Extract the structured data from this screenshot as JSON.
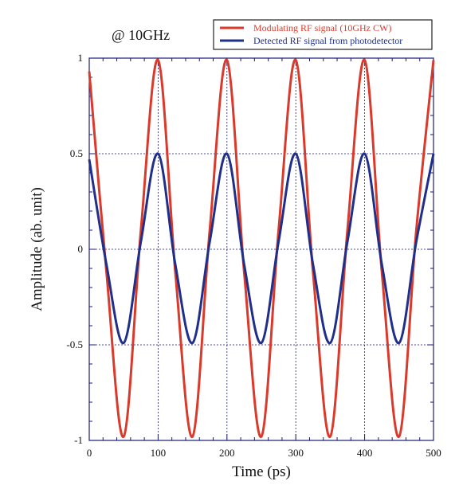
{
  "chart_data": {
    "type": "line",
    "annotation": "@ 10GHz",
    "xlabel": "Time (ps)",
    "ylabel": "Amplitude (ab. unit)",
    "xlim": [
      0,
      500
    ],
    "ylim": [
      -1,
      1
    ],
    "xticks": [
      "0",
      "100",
      "200",
      "300",
      "400",
      "500"
    ],
    "yticks": [
      "1",
      "0.5",
      "0",
      "-0.5",
      "-1"
    ],
    "grid": true,
    "legend_position": "top-right",
    "series": [
      {
        "name": "Modulating RF signal (10GHz CW)",
        "color": "#d93a2b",
        "x": [
          0,
          25,
          50,
          75,
          100,
          125,
          150,
          175,
          200,
          225,
          250,
          275,
          300,
          325,
          350,
          375,
          400,
          425,
          450,
          475,
          500
        ],
        "y": [
          0.93,
          -0.12,
          -0.98,
          0.1,
          0.99,
          -0.12,
          -0.98,
          0.1,
          0.99,
          -0.12,
          -0.98,
          0.1,
          0.99,
          -0.12,
          -0.98,
          0.1,
          0.99,
          -0.12,
          -0.98,
          0.1,
          0.99
        ]
      },
      {
        "name": "Detected RF signal from photodetector",
        "color": "#1f2f8a",
        "x": [
          0,
          25,
          50,
          75,
          100,
          125,
          150,
          175,
          200,
          225,
          250,
          275,
          300,
          325,
          350,
          375,
          400,
          425,
          450,
          475,
          500
        ],
        "y": [
          0.47,
          -0.08,
          -0.49,
          0.04,
          0.5,
          -0.08,
          -0.49,
          0.04,
          0.5,
          -0.08,
          -0.49,
          0.04,
          0.5,
          -0.08,
          -0.49,
          0.04,
          0.5,
          -0.08,
          -0.49,
          0.04,
          0.5
        ]
      }
    ]
  }
}
